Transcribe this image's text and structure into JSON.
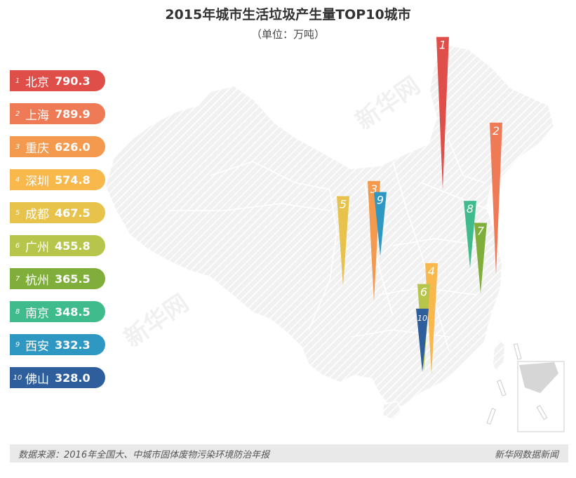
{
  "title": "2015年城市生活垃圾产生量TOP10城市",
  "subtitle": "（单位：万吨）",
  "source": "数据来源：2016年全国大、中城市固体废物污染环境防治年报",
  "brand": "新华网数据新闻",
  "watermark": "新华网",
  "chart_data": {
    "type": "bar",
    "title": "2015年城市生活垃圾产生量TOP10城市",
    "unit": "万吨",
    "categories": [
      "北京",
      "上海",
      "重庆",
      "深圳",
      "成都",
      "广州",
      "杭州",
      "南京",
      "西安",
      "佛山"
    ],
    "ranks": [
      "1",
      "2",
      "3",
      "4",
      "5",
      "6",
      "7",
      "8",
      "9",
      "10"
    ],
    "values": [
      790.3,
      789.9,
      626.0,
      574.8,
      467.5,
      455.8,
      365.5,
      348.5,
      332.3,
      328.0
    ],
    "value_labels": [
      "790.3",
      "789.9",
      "626.0",
      "574.8",
      "467.5",
      "455.8",
      "365.5",
      "348.5",
      "332.3",
      "328.0"
    ],
    "colors": [
      "#e04e4a",
      "#ee7a56",
      "#f39a4f",
      "#f8b84b",
      "#e7c34c",
      "#b7c64a",
      "#7fae3b",
      "#3fbb8c",
      "#2e98c3",
      "#2f5e9c"
    ],
    "legend_position": "left"
  }
}
